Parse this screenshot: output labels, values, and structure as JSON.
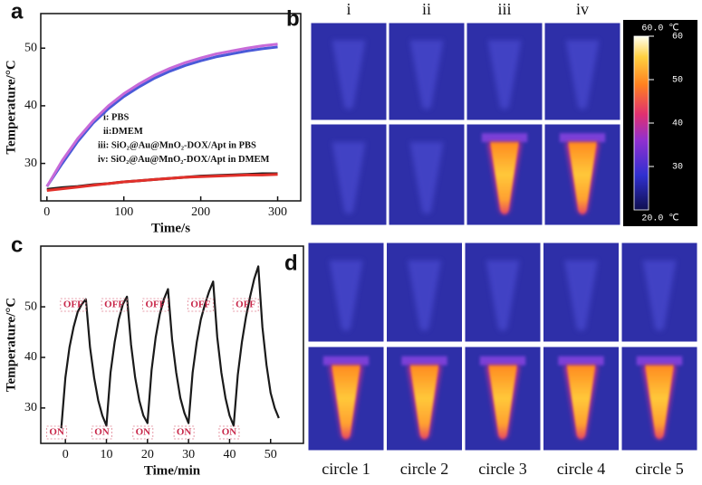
{
  "panel_labels": [
    "a",
    "b",
    "c",
    "d"
  ],
  "chart_data": [
    {
      "type": "line",
      "x_label": "Time/s",
      "y_label": "Temperature/°C",
      "x": [
        0,
        20,
        40,
        60,
        80,
        100,
        120,
        140,
        160,
        180,
        200,
        220,
        240,
        260,
        280,
        300
      ],
      "series": [
        {
          "name": "i: PBS",
          "color": "#1a1a1a",
          "values": [
            25.5,
            25.8,
            26,
            26.3,
            26.5,
            26.8,
            27,
            27.2,
            27.4,
            27.6,
            27.8,
            27.9,
            28,
            28.1,
            28.2,
            28.2
          ]
        },
        {
          "name": "ii:DMEM",
          "color": "#e2302a",
          "values": [
            25.3,
            25.6,
            25.9,
            26.2,
            26.5,
            26.8,
            27,
            27.2,
            27.4,
            27.6,
            27.7,
            27.8,
            27.9,
            28,
            28,
            28.1
          ]
        },
        {
          "name": "iii: SiO₂@Au@MnO₂-DOX/Apt in PBS",
          "color": "#4a5ad8",
          "values": [
            26,
            30,
            33.8,
            37,
            39.5,
            41.6,
            43.3,
            44.8,
            46,
            47,
            47.8,
            48.5,
            49,
            49.5,
            49.9,
            50.2
          ]
        },
        {
          "name": "iv: SiO₂@Au@MnO₂-DOX/Apt in DMEM",
          "color": "#c86ad8",
          "values": [
            26,
            30.5,
            34.3,
            37.4,
            40,
            42.1,
            43.8,
            45.3,
            46.5,
            47.5,
            48.3,
            49,
            49.5,
            50,
            50.4,
            50.7
          ]
        }
      ],
      "xlim": [
        -8,
        330
      ],
      "ylim": [
        23.5,
        56
      ],
      "xticks": [
        0,
        100,
        200,
        300
      ],
      "yticks": [
        30,
        40,
        50
      ]
    },
    {
      "type": "line",
      "x_label": "Time/min",
      "y_label": "Temperature/°C",
      "x": [
        -1,
        0,
        1,
        2,
        3,
        4,
        5,
        6,
        7,
        8,
        9,
        10,
        11,
        12,
        13,
        14,
        15,
        16,
        17,
        18,
        19,
        20,
        21,
        22,
        23,
        24,
        25,
        26,
        27,
        28,
        29,
        30,
        31,
        32,
        33,
        34,
        35,
        36,
        37,
        38,
        39,
        40,
        41,
        42,
        43,
        44,
        45,
        46,
        47,
        48,
        49,
        50,
        51,
        52
      ],
      "series": [
        {
          "color": "#1a1a1a",
          "values": [
            26,
            36,
            42,
            46,
            49,
            50.5,
            51.5,
            42,
            36,
            31.5,
            28.5,
            26.5,
            37,
            43,
            47.5,
            50.5,
            52,
            42.5,
            36,
            31.5,
            28.5,
            27,
            37.5,
            44,
            48.5,
            51.5,
            53.5,
            43.5,
            37,
            32,
            29,
            27,
            37,
            43,
            47.5,
            50.5,
            53,
            55,
            44,
            37,
            32,
            28.5,
            26.5,
            36.5,
            43,
            48,
            52,
            55.5,
            58,
            46,
            38.5,
            33,
            30,
            28
          ]
        }
      ],
      "on_label": "ON",
      "off_label": "OFF",
      "xlim": [
        -6,
        58
      ],
      "ylim": [
        23,
        62
      ],
      "xticks": [
        0,
        10,
        20,
        30,
        40,
        50
      ],
      "yticks": [
        30,
        40,
        50
      ]
    }
  ],
  "thermal_b": {
    "columns": [
      "i",
      "ii",
      "iii",
      "iv"
    ]
  },
  "colorbar": {
    "top_label": "60.0 ℃",
    "bottom_label": "20.0 ℃",
    "lim": [
      20,
      60
    ],
    "ticks": [
      30,
      40,
      50,
      60
    ]
  },
  "thermal_d": {
    "columns": [
      "circle 1",
      "circle 2",
      "circle 3",
      "circle 4",
      "circle 5"
    ]
  }
}
